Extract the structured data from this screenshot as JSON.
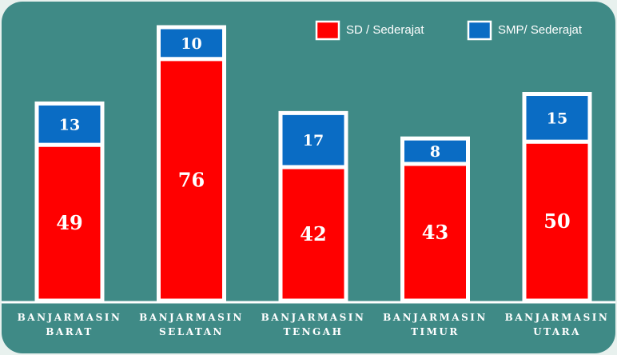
{
  "chart_data": {
    "type": "stacked-bar",
    "categories": [
      "BANJARMASIN BARAT",
      "BANJARMASIN SELATAN",
      "BANJARMASIN TENGAH",
      "BANJARMASIN TIMUR",
      "BANJARMASIN UTARA"
    ],
    "series": [
      {
        "name": "SD / Sederajat",
        "color": "#ff0000",
        "values": [
          49,
          76,
          42,
          43,
          50
        ]
      },
      {
        "name": "SMP/ Sederajat",
        "color": "#0a6cc4",
        "values": [
          13,
          10,
          17,
          8,
          15
        ]
      }
    ],
    "legend": "top-right"
  }
}
